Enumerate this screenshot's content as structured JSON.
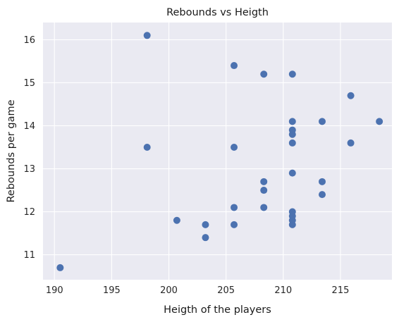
{
  "chart_data": {
    "type": "scatter",
    "title": "Rebounds vs Heigth",
    "xlabel": "Heigth of the players",
    "ylabel": "Rebounds per game",
    "xlim": [
      189,
      219.5
    ],
    "ylim": [
      10.42,
      16.4
    ],
    "xticks": [
      190,
      195,
      200,
      205,
      210,
      215
    ],
    "yticks": [
      11,
      12,
      13,
      14,
      15,
      16
    ],
    "grid": true,
    "legend": "none",
    "colors": {
      "background": "#eaeaf2",
      "grid": "#ffffff",
      "marker": "#4c72b0"
    },
    "series": [
      {
        "points": [
          {
            "x": 190.5,
            "y": 10.7
          },
          {
            "x": 198.1,
            "y": 16.1
          },
          {
            "x": 198.1,
            "y": 13.5
          },
          {
            "x": 200.7,
            "y": 11.8
          },
          {
            "x": 203.2,
            "y": 11.7
          },
          {
            "x": 203.2,
            "y": 11.4
          },
          {
            "x": 205.7,
            "y": 15.4
          },
          {
            "x": 205.7,
            "y": 13.5
          },
          {
            "x": 205.7,
            "y": 12.1
          },
          {
            "x": 205.7,
            "y": 11.7
          },
          {
            "x": 208.3,
            "y": 15.2
          },
          {
            "x": 208.3,
            "y": 12.7
          },
          {
            "x": 208.3,
            "y": 12.5
          },
          {
            "x": 208.3,
            "y": 12.1
          },
          {
            "x": 210.8,
            "y": 15.2
          },
          {
            "x": 210.8,
            "y": 14.1
          },
          {
            "x": 210.8,
            "y": 13.9
          },
          {
            "x": 210.8,
            "y": 13.8
          },
          {
            "x": 210.8,
            "y": 13.6
          },
          {
            "x": 210.8,
            "y": 12.9
          },
          {
            "x": 210.8,
            "y": 12.0
          },
          {
            "x": 210.8,
            "y": 11.9
          },
          {
            "x": 210.8,
            "y": 11.8
          },
          {
            "x": 210.8,
            "y": 11.7
          },
          {
            "x": 213.4,
            "y": 14.1
          },
          {
            "x": 213.4,
            "y": 12.7
          },
          {
            "x": 213.4,
            "y": 12.4
          },
          {
            "x": 215.9,
            "y": 14.7
          },
          {
            "x": 215.9,
            "y": 13.6
          },
          {
            "x": 218.4,
            "y": 14.1
          }
        ]
      }
    ]
  }
}
